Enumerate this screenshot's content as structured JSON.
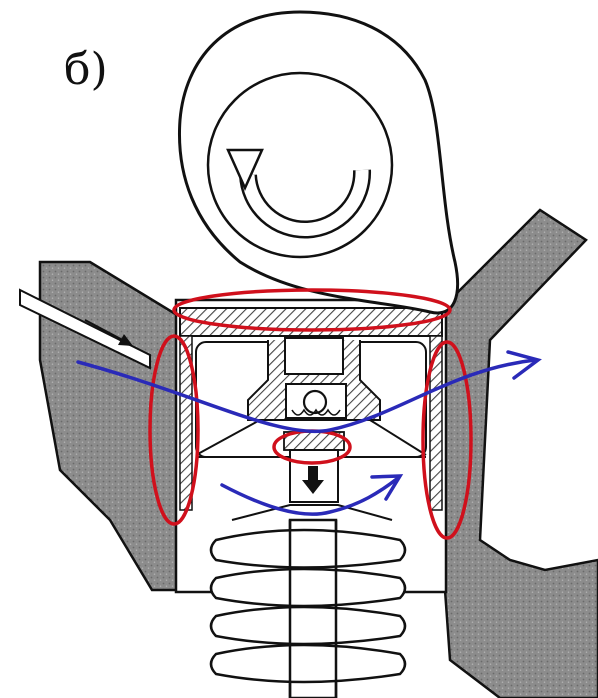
{
  "panel_label": "б)",
  "colors": {
    "outline": "#111111",
    "head_fill": "#9a9a9a",
    "hatch": "#555555",
    "highlight": "#d0101c",
    "flow": "#2a2ab8",
    "background": "#ffffff"
  },
  "icons": {
    "cam_rotation": "circular-arrow-icon",
    "plunger_direction": "down-arrow-icon",
    "oil_inlet": "right-arrow-icon"
  }
}
